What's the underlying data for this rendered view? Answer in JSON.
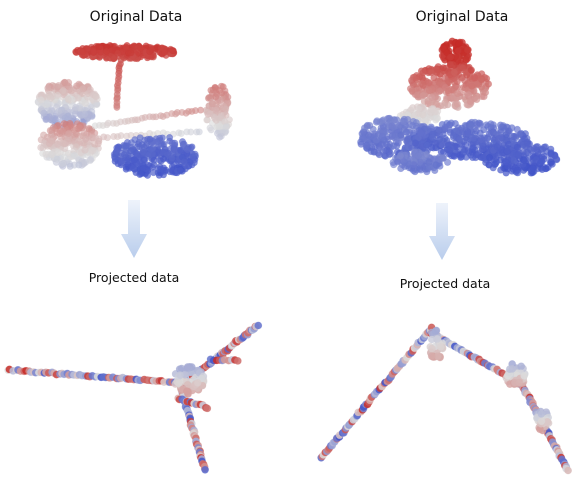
{
  "panels": [
    {
      "title": "Original Data",
      "subtitle": "Projected data"
    },
    {
      "title": "Original Data",
      "subtitle": "Projected data"
    }
  ],
  "colors": {
    "warm": "#c62a26",
    "mid": "#dcdcdc",
    "cool": "#3d50c8",
    "arrow_top": "#eef3fb",
    "arrow_bottom": "#b9cdec"
  }
}
